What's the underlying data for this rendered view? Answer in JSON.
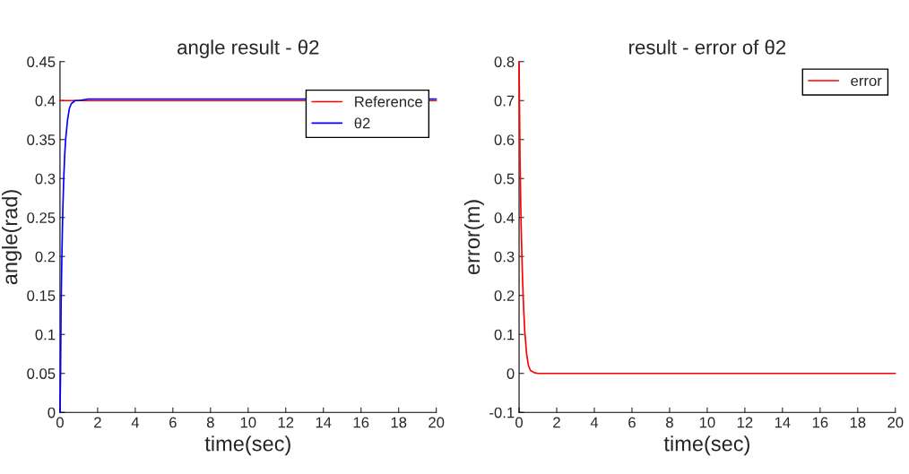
{
  "chart_data": [
    {
      "type": "line",
      "title": "angle result - θ2",
      "xlabel": "time(sec)",
      "ylabel": "angle(rad)",
      "xlim": [
        0,
        20
      ],
      "xticks": [
        0,
        2,
        4,
        6,
        8,
        10,
        12,
        14,
        16,
        18,
        20
      ],
      "ylim": [
        0,
        0.45
      ],
      "yticks": [
        0,
        0.05,
        0.1,
        0.15,
        0.2,
        0.25,
        0.3,
        0.35,
        0.4,
        0.45
      ],
      "grid": false,
      "legend": "top right",
      "series": [
        {
          "name": "Reference",
          "color": "#ff0000",
          "x": [
            0,
            20
          ],
          "values": [
            0.4,
            0.4
          ]
        },
        {
          "name": "θ2",
          "color": "#0000ff",
          "x": [
            0,
            0.03,
            0.06,
            0.1,
            0.15,
            0.2,
            0.25,
            0.3,
            0.4,
            0.5,
            0.6,
            0.8,
            1.0,
            1.5,
            20
          ],
          "values": [
            0,
            0.05,
            0.14,
            0.2,
            0.26,
            0.3,
            0.33,
            0.35,
            0.375,
            0.39,
            0.396,
            0.4,
            0.4,
            0.402,
            0.402
          ]
        }
      ]
    },
    {
      "type": "line",
      "title": "result - error of θ2",
      "xlabel": "time(sec)",
      "ylabel": "error(m)",
      "xlim": [
        0,
        20
      ],
      "xticks": [
        0,
        2,
        4,
        6,
        8,
        10,
        12,
        14,
        16,
        18,
        20
      ],
      "ylim": [
        -0.1,
        0.8
      ],
      "yticks": [
        -0.1,
        0,
        0.1,
        0.2,
        0.3,
        0.4,
        0.5,
        0.6,
        0.7,
        0.8
      ],
      "grid": false,
      "legend": "top right",
      "series": [
        {
          "name": "error",
          "color": "#ff0000",
          "x": [
            0,
            0.02,
            0.05,
            0.1,
            0.15,
            0.2,
            0.25,
            0.3,
            0.4,
            0.5,
            0.6,
            0.8,
            1.0,
            20
          ],
          "values": [
            0.8,
            0.7,
            0.55,
            0.4,
            0.3,
            0.22,
            0.16,
            0.11,
            0.05,
            0.02,
            0.008,
            0.002,
            0,
            0
          ]
        }
      ]
    }
  ]
}
